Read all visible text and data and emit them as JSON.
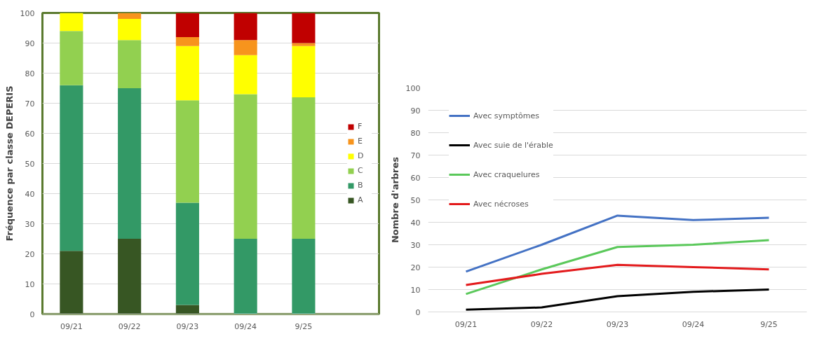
{
  "chart_data": [
    {
      "type": "bar",
      "stacked": true,
      "ylabel": "Fréquence par classe DEPERIS",
      "categories": [
        "09/21",
        "09/22",
        "09/23",
        "09/24",
        "9/25"
      ],
      "ylim": [
        0,
        100
      ],
      "yticks": [
        0,
        10,
        20,
        30,
        40,
        50,
        60,
        70,
        80,
        90,
        100
      ],
      "grid": "y",
      "legend": "right",
      "series": [
        {
          "name": "A",
          "color": "#375623",
          "values": [
            21,
            25,
            3,
            0,
            0
          ]
        },
        {
          "name": "B",
          "color": "#339966",
          "values": [
            55,
            50,
            34,
            25,
            25
          ]
        },
        {
          "name": "C",
          "color": "#92d050",
          "values": [
            18,
            16,
            34,
            48,
            47
          ]
        },
        {
          "name": "D",
          "color": "#ffff00",
          "values": [
            6,
            7,
            18,
            13,
            17
          ]
        },
        {
          "name": "E",
          "color": "#f7941d",
          "values": [
            0,
            2,
            3,
            5,
            1
          ]
        },
        {
          "name": "F",
          "color": "#c00000",
          "values": [
            0,
            0,
            8,
            9,
            10
          ]
        }
      ]
    },
    {
      "type": "line",
      "ylabel": "Nombre d'arbres",
      "categories": [
        "09/21",
        "09/22",
        "09/23",
        "09/24",
        "9/25"
      ],
      "ylim": [
        0,
        100
      ],
      "yticks": [
        0,
        10,
        20,
        30,
        40,
        50,
        60,
        70,
        80,
        90,
        100
      ],
      "grid": "y",
      "legend": "top left",
      "line_style": "solid",
      "marker": "none",
      "series": [
        {
          "name": "Avec symptômes",
          "color": "#4472c4",
          "values": [
            18,
            30,
            43,
            41,
            42
          ]
        },
        {
          "name": "Avec suie de l'érable",
          "color": "#000000",
          "values": [
            1,
            2,
            7,
            9,
            10
          ]
        },
        {
          "name": "Avec craquelures",
          "color": "#5ac85a",
          "values": [
            8,
            19,
            29,
            30,
            32
          ]
        },
        {
          "name": "Avec nécroses",
          "color": "#e31a1c",
          "values": [
            12,
            17,
            21,
            20,
            19
          ]
        }
      ]
    }
  ]
}
